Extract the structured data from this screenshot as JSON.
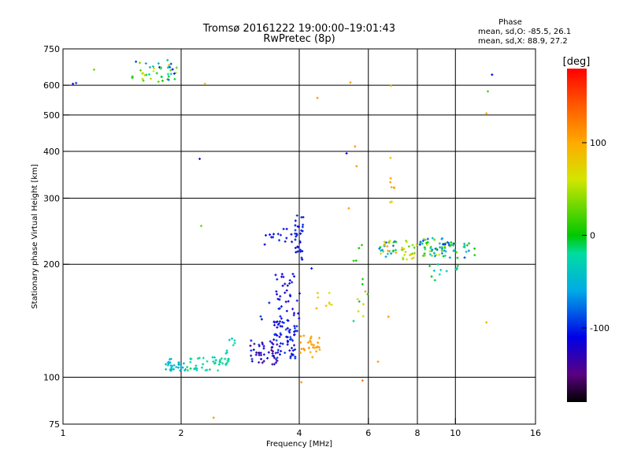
{
  "chart_data": {
    "type": "scatter",
    "title": "Tromsø 20161222 19:00:00–19:01:43",
    "subtitle": "RwPretec (8p)",
    "xlabel": "Frequency [MHz]",
    "ylabel": "Stationary phase Virtual Height [km]",
    "x_scale": "log2",
    "y_scale": "log",
    "xlim": [
      1,
      16
    ],
    "ylim": [
      75,
      750
    ],
    "x_ticks": [
      1,
      2,
      4,
      6,
      8,
      10,
      16
    ],
    "y_ticks": [
      75,
      100,
      200,
      300,
      400,
      500,
      600,
      750
    ],
    "x_grid": [
      2,
      4,
      6,
      8,
      10
    ],
    "y_grid": [
      100,
      200,
      300,
      400,
      500,
      600
    ],
    "stats": {
      "heading": "Phase",
      "line1": "mean, sd,O: -85.5, 26.1",
      "line2": "mean, sd,X:  88.9, 27.2"
    },
    "colorbar": {
      "label": "[deg]",
      "range": [
        -180,
        180
      ],
      "ticks": [
        100,
        0,
        -100
      ]
    },
    "clusters": [
      {
        "x": [
          1.5,
          1.95
        ],
        "y": [
          605,
          700
        ],
        "phase": [
          -110,
          90
        ],
        "n": 45
      },
      {
        "x": [
          1.8,
          2.05
        ],
        "y": [
          104,
          112
        ],
        "phase": [
          -60,
          -40
        ],
        "n": 30
      },
      {
        "x": [
          2.05,
          2.65
        ],
        "y": [
          104,
          114
        ],
        "phase": [
          -40,
          -10
        ],
        "n": 45
      },
      {
        "x": [
          2.6,
          2.8
        ],
        "y": [
          114,
          128
        ],
        "phase": [
          -40,
          -10
        ],
        "n": 8
      },
      {
        "x": [
          3.0,
          3.55
        ],
        "y": [
          108,
          126
        ],
        "phase": [
          -150,
          -90
        ],
        "n": 45
      },
      {
        "x": [
          3.4,
          3.95
        ],
        "y": [
          112,
          140
        ],
        "phase": [
          -130,
          -90
        ],
        "n": 60
      },
      {
        "x": [
          3.45,
          4.05
        ],
        "y": [
          140,
          195
        ],
        "phase": [
          -120,
          -100
        ],
        "n": 40
      },
      {
        "x": [
          3.9,
          4.1
        ],
        "y": [
          205,
          270
        ],
        "phase": [
          -115,
          -95
        ],
        "n": 30
      },
      {
        "x": [
          3.2,
          3.85
        ],
        "y": [
          225,
          250
        ],
        "phase": [
          -115,
          -100
        ],
        "n": 15
      },
      {
        "x": [
          4.0,
          4.55
        ],
        "y": [
          113,
          130
        ],
        "phase": [
          95,
          115
        ],
        "n": 28
      },
      {
        "x": [
          6.4,
          7.1
        ],
        "y": [
          208,
          232
        ],
        "phase": [
          -90,
          110
        ],
        "n": 30
      },
      {
        "x": [
          7.3,
          8.0
        ],
        "y": [
          205,
          232
        ],
        "phase": [
          20,
          90
        ],
        "n": 22
      },
      {
        "x": [
          8.1,
          9.5
        ],
        "y": [
          210,
          235
        ],
        "phase": [
          -100,
          60
        ],
        "n": 50
      },
      {
        "x": [
          9.2,
          11.2
        ],
        "y": [
          208,
          230
        ],
        "phase": [
          -110,
          40
        ],
        "n": 30
      },
      {
        "x": [
          7.5,
          10.8
        ],
        "y": [
          180,
          200
        ],
        "phase": [
          -60,
          10
        ],
        "n": 12
      },
      {
        "x": [
          5.5,
          6.0
        ],
        "y": [
          140,
          230
        ],
        "phase": [
          -40,
          110
        ],
        "n": 14
      },
      {
        "x": [
          6.8,
          7.0
        ],
        "y": [
          280,
          430
        ],
        "phase": [
          60,
          115
        ],
        "n": 9
      },
      {
        "x": [
          4.4,
          4.9
        ],
        "y": [
          150,
          170
        ],
        "phase": [
          60,
          110
        ],
        "n": 8
      },
      {
        "x": [
          3.1,
          3.8
        ],
        "y": [
          140,
          160
        ],
        "phase": [
          -120,
          -90
        ],
        "n": 8
      }
    ],
    "points": [
      {
        "x": 1.06,
        "y": 605,
        "phase": -110
      },
      {
        "x": 1.08,
        "y": 608,
        "phase": -90
      },
      {
        "x": 1.2,
        "y": 660,
        "phase": 30
      },
      {
        "x": 2.23,
        "y": 382,
        "phase": -130
      },
      {
        "x": 2.25,
        "y": 253,
        "phase": 30
      },
      {
        "x": 2.3,
        "y": 605,
        "phase": 100
      },
      {
        "x": 2.42,
        "y": 78,
        "phase": 110
      },
      {
        "x": 4.05,
        "y": 97,
        "phase": 110
      },
      {
        "x": 4.45,
        "y": 555,
        "phase": 110
      },
      {
        "x": 4.3,
        "y": 195,
        "phase": -110
      },
      {
        "x": 5.28,
        "y": 395,
        "phase": -110
      },
      {
        "x": 5.4,
        "y": 610,
        "phase": 110
      },
      {
        "x": 5.55,
        "y": 412,
        "phase": 110
      },
      {
        "x": 5.8,
        "y": 98,
        "phase": 130
      },
      {
        "x": 6.35,
        "y": 110,
        "phase": 110
      },
      {
        "x": 6.85,
        "y": 598,
        "phase": 90
      },
      {
        "x": 6.75,
        "y": 145,
        "phase": 110
      },
      {
        "x": 12.4,
        "y": 640,
        "phase": -110
      },
      {
        "x": 12.1,
        "y": 578,
        "phase": 20
      },
      {
        "x": 12.0,
        "y": 505,
        "phase": 100
      },
      {
        "x": 12.0,
        "y": 140,
        "phase": 100
      },
      {
        "x": 5.6,
        "y": 365,
        "phase": 110
      },
      {
        "x": 5.35,
        "y": 282,
        "phase": 110
      }
    ]
  }
}
